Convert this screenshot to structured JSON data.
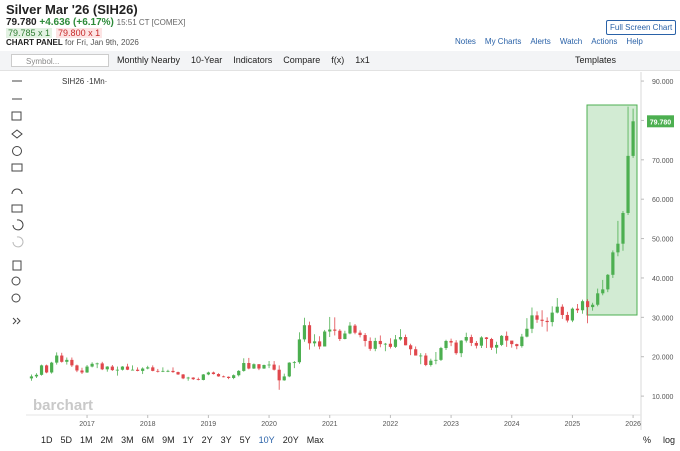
{
  "ui": {
    "title": "Silver Mar '26 (SIH26)",
    "last": "79.780",
    "change": "+4.636 (+6.17%)",
    "time": "15:51 CT [COMEX]",
    "bid": "79.785 x 1",
    "ask": "79.800 x 1",
    "panel_label": "CHART PANEL",
    "panel_date": "for Fri, Jan 9th, 2026",
    "full_screen": "Full Screen Chart",
    "links": [
      "Notes",
      "My Charts",
      "Alerts",
      "Watch",
      "Actions",
      "Help"
    ],
    "symbol_placeholder": "Symbol...",
    "toolbar": [
      "Monthly Nearby",
      "10-Year",
      "Indicators",
      "Compare",
      "f(x)",
      "1x1"
    ],
    "templates": "Templates",
    "legend": "SIH26 ·1Mn·",
    "watermark": "barchart",
    "periods": [
      "1D",
      "5D",
      "1M",
      "2M",
      "3M",
      "6M",
      "9M",
      "1Y",
      "2Y",
      "3Y",
      "5Y",
      "10Y",
      "20Y",
      "Max"
    ],
    "right_controls": [
      "%",
      "log"
    ]
  },
  "chart_data": {
    "type": "candlestick",
    "up_color": "#4caf50",
    "down_color": "#e0474c",
    "ylim": [
      5.2,
      92.3
    ],
    "yticks": [
      {
        "value": 10,
        "label": "10.000"
      },
      {
        "value": 20,
        "label": "20.000"
      },
      {
        "value": 30,
        "label": "30.000"
      },
      {
        "value": 40,
        "label": "40.000"
      },
      {
        "value": 50,
        "label": "50.000"
      },
      {
        "value": 60,
        "label": "60.000"
      },
      {
        "value": 70,
        "label": "70.000"
      },
      {
        "value": 80,
        "label": "80.000"
      },
      {
        "value": 90,
        "label": "90.000"
      }
    ],
    "xticks": [
      {
        "value": 11,
        "label": "2017"
      },
      {
        "value": 23,
        "label": "2018"
      },
      {
        "value": 35,
        "label": "2019"
      },
      {
        "value": 47,
        "label": "2020"
      },
      {
        "value": 59,
        "label": "2021"
      },
      {
        "value": 71,
        "label": "2022"
      },
      {
        "value": 83,
        "label": "2023"
      },
      {
        "value": 95,
        "label": "2024"
      },
      {
        "value": 107,
        "label": "2025"
      },
      {
        "value": 119,
        "label": "2026"
      }
    ],
    "open": [
      14.5,
      15.0,
      15.4,
      17.8,
      16.0,
      18.5,
      20.3,
      18.7,
      19.2,
      17.8,
      16.5,
      16.0,
      17.5,
      18.2,
      18.3,
      16.8,
      17.5,
      16.6,
      16.7,
      17.5,
      16.7,
      16.7,
      16.4,
      17.0,
      17.3,
      16.4,
      16.3,
      16.4,
      16.4,
      16.1,
      15.5,
      14.5,
      14.7,
      14.3,
      14.1,
      15.5,
      16.0,
      15.6,
      15.0,
      14.9,
      14.6,
      15.3,
      16.4,
      18.4,
      17.0,
      18.1,
      17.0,
      17.9,
      18.0,
      16.7,
      14.0,
      15.0,
      18.5,
      18.6,
      24.4,
      28.0,
      23.4,
      23.9,
      22.6,
      26.4,
      26.9,
      26.6,
      24.5,
      25.9,
      27.9,
      26.1,
      25.5,
      24.0,
      22.0,
      24.0,
      23.2,
      23.3,
      22.5,
      24.4,
      25.0,
      22.9,
      21.9,
      20.3,
      20.3,
      17.9,
      19.0,
      19.2,
      22.2,
      24.0,
      23.6,
      20.9,
      24.1,
      25.0,
      23.5,
      22.8,
      24.9,
      24.5,
      22.3,
      23.0,
      25.3,
      24.1,
      23.2,
      22.7,
      25.1,
      27.1,
      30.5,
      29.4,
      29.1,
      28.8,
      31.2,
      32.7,
      30.6,
      29.2,
      32.2,
      31.8,
      34.1,
      32.6,
      33.2,
      36.1,
      37.1,
      40.8,
      46.5,
      48.7,
      56.5,
      71.0
    ],
    "high": [
      15.5,
      15.8,
      18.0,
      18.0,
      18.7,
      21.1,
      21.0,
      19.8,
      19.8,
      18.0,
      17.2,
      17.9,
      18.6,
      18.5,
      18.7,
      17.6,
      17.9,
      17.5,
      17.6,
      18.2,
      17.8,
      17.3,
      17.3,
      17.7,
      17.8,
      16.9,
      17.3,
      16.7,
      17.3,
      16.2,
      15.6,
      14.9,
      14.8,
      14.7,
      15.6,
      16.2,
      16.2,
      15.8,
      15.2,
      15.0,
      15.5,
      16.6,
      19.6,
      19.7,
      18.3,
      18.1,
      18.0,
      18.9,
      18.9,
      17.8,
      15.7,
      18.6,
      18.9,
      26.2,
      29.9,
      28.9,
      25.7,
      25.2,
      26.8,
      30.1,
      30.0,
      27.0,
      26.6,
      28.8,
      28.3,
      26.7,
      26.0,
      24.9,
      24.8,
      25.4,
      23.5,
      24.7,
      25.5,
      27.0,
      25.6,
      23.3,
      22.6,
      20.9,
      20.9,
      19.5,
      21.2,
      22.5,
      24.3,
      24.6,
      24.2,
      24.2,
      26.1,
      25.6,
      24.0,
      25.2,
      25.0,
      24.8,
      23.8,
      25.5,
      26.4,
      24.0,
      23.3,
      25.8,
      29.8,
      32.5,
      31.5,
      31.8,
      30.0,
      32.8,
      34.9,
      33.3,
      31.4,
      32.5,
      33.4,
      34.5,
      34.6,
      33.7,
      37.3,
      39.5,
      41.0,
      47.0,
      54.5,
      57.0,
      83.5,
      83.0
    ],
    "low": [
      13.9,
      14.6,
      15.2,
      15.8,
      15.7,
      18.0,
      18.5,
      18.0,
      17.4,
      16.1,
      15.6,
      15.9,
      17.3,
      17.1,
      16.6,
      16.2,
      16.4,
      15.2,
      16.5,
      16.6,
      16.6,
      16.3,
      15.6,
      16.8,
      16.3,
      16.0,
      16.1,
      16.1,
      15.9,
      15.4,
      14.3,
      13.9,
      14.1,
      14.0,
      14.0,
      15.3,
      15.5,
      14.9,
      14.8,
      14.3,
      14.3,
      15.0,
      16.2,
      16.8,
      16.9,
      16.6,
      16.9,
      17.1,
      16.5,
      11.6,
      13.9,
      14.8,
      17.1,
      18.2,
      23.8,
      21.8,
      22.6,
      21.9,
      22.6,
      25.0,
      25.4,
      24.0,
      24.4,
      25.7,
      25.7,
      24.9,
      22.6,
      21.5,
      21.4,
      22.4,
      21.4,
      22.1,
      22.2,
      24.1,
      22.9,
      20.4,
      20.3,
      18.1,
      17.6,
      17.5,
      18.1,
      18.9,
      21.7,
      22.7,
      20.5,
      19.9,
      23.6,
      22.7,
      22.1,
      22.2,
      22.2,
      21.7,
      20.8,
      22.7,
      22.5,
      22.3,
      21.9,
      22.3,
      24.9,
      26.0,
      28.6,
      27.6,
      26.4,
      27.7,
      31.0,
      29.6,
      28.7,
      28.8,
      31.1,
      30.9,
      28.5,
      31.7,
      32.8,
      35.6,
      36.4,
      40.0,
      45.5,
      46.9,
      56.0,
      70.5
    ],
    "close": [
      15.0,
      15.4,
      17.8,
      16.0,
      18.5,
      20.3,
      18.7,
      19.2,
      17.8,
      16.5,
      16.0,
      17.5,
      18.2,
      18.3,
      16.8,
      17.5,
      16.6,
      16.7,
      17.5,
      16.7,
      16.7,
      16.4,
      17.0,
      17.3,
      16.4,
      16.3,
      16.4,
      16.4,
      16.1,
      15.5,
      14.5,
      14.7,
      14.3,
      14.1,
      15.5,
      16.0,
      15.6,
      15.0,
      14.9,
      14.6,
      15.3,
      16.4,
      18.4,
      17.0,
      18.1,
      17.0,
      17.9,
      18.0,
      16.7,
      14.0,
      15.0,
      18.5,
      18.6,
      24.4,
      28.0,
      23.4,
      23.9,
      22.6,
      26.4,
      26.9,
      26.6,
      24.5,
      25.9,
      27.9,
      26.1,
      25.5,
      24.0,
      22.0,
      24.0,
      23.2,
      23.3,
      22.5,
      24.4,
      25.0,
      22.9,
      21.9,
      20.3,
      20.3,
      17.9,
      19.0,
      19.2,
      22.2,
      24.0,
      23.6,
      20.9,
      24.1,
      25.0,
      23.5,
      22.8,
      24.9,
      24.5,
      22.3,
      23.0,
      25.3,
      24.1,
      23.2,
      22.7,
      25.1,
      27.1,
      30.5,
      29.4,
      29.1,
      28.8,
      31.2,
      32.7,
      30.6,
      29.2,
      32.2,
      31.8,
      34.1,
      32.6,
      33.2,
      36.1,
      37.1,
      40.8,
      46.5,
      48.7,
      56.5,
      71.0,
      79.78
    ]
  }
}
